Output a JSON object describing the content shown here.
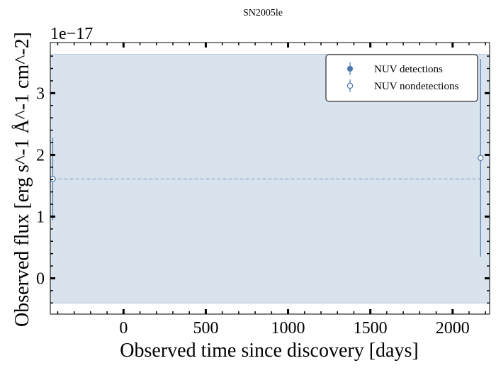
{
  "chart_data": {
    "type": "scatter",
    "title": "SN2005le",
    "xlabel": "Observed time since discovery [days]",
    "ylabel": "Observed flux [erg s^-1 Å^-1 cm^-2]",
    "y_offset_label": "1e−17",
    "xlim": [
      -445,
      2225
    ],
    "ylim": [
      -0.58,
      3.82
    ],
    "y_scale_factor": 1e-17,
    "x_ticks": [
      0,
      500,
      1000,
      1500,
      2000
    ],
    "y_ticks": [
      0,
      1,
      2,
      3
    ],
    "x_tick_labels": [
      "0",
      "500",
      "1000",
      "1500",
      "2000"
    ],
    "y_tick_labels": [
      "0",
      "1",
      "2",
      "3"
    ],
    "grid": false,
    "legend_position": "top-right",
    "colors": {
      "series": "#4a7aae",
      "band": "#d8e3ee",
      "band_edge": "#b3c7da"
    },
    "series": [
      {
        "name": "NUV detections",
        "marker": "filled-circle",
        "points": []
      },
      {
        "name": "NUV nondetections",
        "marker": "open-circle",
        "points": [
          {
            "x": -430,
            "y": 1.61,
            "yerr": 0.67
          },
          {
            "x": 2170,
            "y": 1.95,
            "yerr": 1.6
          }
        ]
      }
    ],
    "reference_line": {
      "y": 1.61,
      "style": "dashed"
    },
    "shaded_band": {
      "y_low": -0.4,
      "y_high": 3.63
    }
  }
}
